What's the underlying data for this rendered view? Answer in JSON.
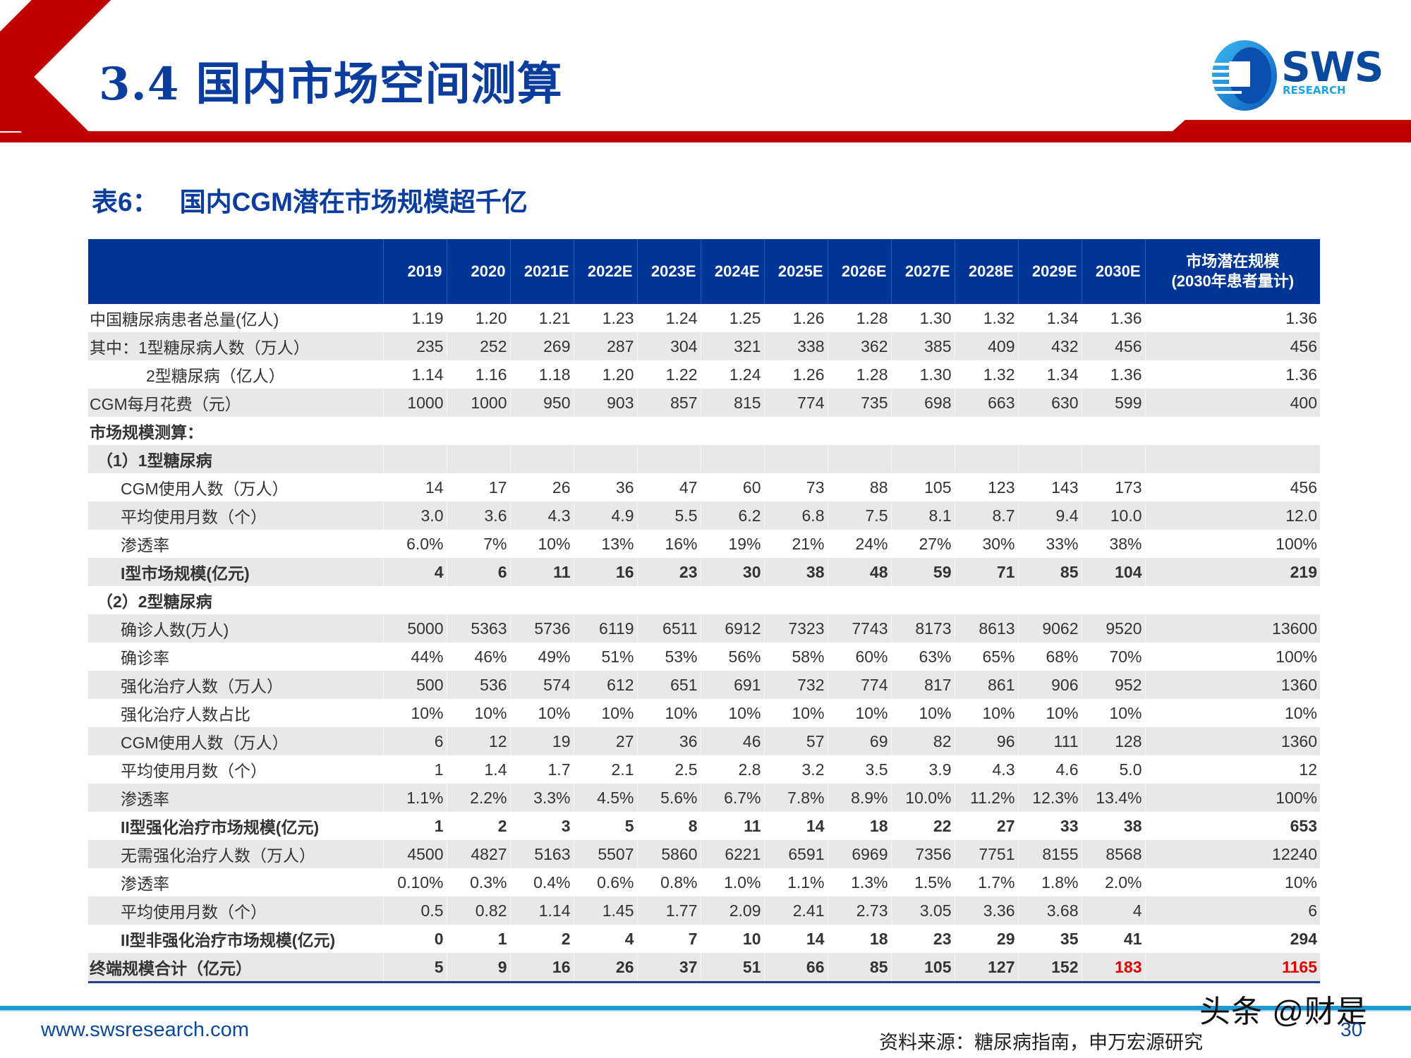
{
  "slide": {
    "title": "3.4 国内市场空间测算",
    "brand": {
      "name": "SWS",
      "sub": "RESEARCH"
    }
  },
  "table": {
    "caption_label": "表6：",
    "caption_text": "国内CGM潜在市场规模超千亿",
    "columns": [
      "",
      "2019",
      "2020",
      "2021E",
      "2022E",
      "2023E",
      "2024E",
      "2025E",
      "2026E",
      "2027E",
      "2028E",
      "2029E",
      "2030E"
    ],
    "last_column": {
      "line1": "市场潜在规模",
      "line2": "(2030年患者量计)"
    },
    "rows": [
      {
        "label": "中国糖尿病患者总量(亿人)",
        "values": [
          "1.19",
          "1.20",
          "1.21",
          "1.23",
          "1.24",
          "1.25",
          "1.26",
          "1.28",
          "1.30",
          "1.32",
          "1.34",
          "1.36"
        ],
        "potential": "1.36"
      },
      {
        "label": "其中：1型糖尿病人数（万人）",
        "values": [
          "235",
          "252",
          "269",
          "287",
          "304",
          "321",
          "338",
          "362",
          "385",
          "409",
          "432",
          "456"
        ],
        "potential": "456"
      },
      {
        "label": "2型糖尿病（亿人）",
        "values": [
          "1.14",
          "1.16",
          "1.18",
          "1.20",
          "1.22",
          "1.24",
          "1.26",
          "1.28",
          "1.30",
          "1.32",
          "1.34",
          "1.36"
        ],
        "potential": "1.36"
      },
      {
        "label": "CGM每月花费（元）",
        "values": [
          "1000",
          "1000",
          "950",
          "903",
          "857",
          "815",
          "774",
          "735",
          "698",
          "663",
          "630",
          "599"
        ],
        "potential": "400"
      },
      {
        "label": "市场规模测算：",
        "values": [
          "",
          "",
          "",
          "",
          "",
          "",
          "",
          "",
          "",
          "",
          "",
          ""
        ],
        "potential": ""
      },
      {
        "label": "（1）1型糖尿病",
        "values": [
          "",
          "",
          "",
          "",
          "",
          "",
          "",
          "",
          "",
          "",
          "",
          ""
        ],
        "potential": ""
      },
      {
        "label": "CGM使用人数（万人）",
        "values": [
          "14",
          "17",
          "26",
          "36",
          "47",
          "60",
          "73",
          "88",
          "105",
          "123",
          "143",
          "173"
        ],
        "potential": "456"
      },
      {
        "label": "平均使用月数（个）",
        "values": [
          "3.0",
          "3.6",
          "4.3",
          "4.9",
          "5.5",
          "6.2",
          "6.8",
          "7.5",
          "8.1",
          "8.7",
          "9.4",
          "10.0"
        ],
        "potential": "12.0"
      },
      {
        "label": "渗透率",
        "values": [
          "6.0%",
          "7%",
          "10%",
          "13%",
          "16%",
          "19%",
          "21%",
          "24%",
          "27%",
          "30%",
          "33%",
          "38%"
        ],
        "potential": "100%"
      },
      {
        "label": "I型市场规模(亿元)",
        "values": [
          "4",
          "6",
          "11",
          "16",
          "23",
          "30",
          "38",
          "48",
          "59",
          "71",
          "85",
          "104"
        ],
        "potential": "219"
      },
      {
        "label": "（2）2型糖尿病",
        "values": [
          "",
          "",
          "",
          "",
          "",
          "",
          "",
          "",
          "",
          "",
          "",
          ""
        ],
        "potential": ""
      },
      {
        "label": "确诊人数(万人)",
        "values": [
          "5000",
          "5363",
          "5736",
          "6119",
          "6511",
          "6912",
          "7323",
          "7743",
          "8173",
          "8613",
          "9062",
          "9520"
        ],
        "potential": "13600"
      },
      {
        "label": "确诊率",
        "values": [
          "44%",
          "46%",
          "49%",
          "51%",
          "53%",
          "56%",
          "58%",
          "60%",
          "63%",
          "65%",
          "68%",
          "70%"
        ],
        "potential": "100%"
      },
      {
        "label": "强化治疗人数（万人）",
        "values": [
          "500",
          "536",
          "574",
          "612",
          "651",
          "691",
          "732",
          "774",
          "817",
          "861",
          "906",
          "952"
        ],
        "potential": "1360"
      },
      {
        "label": "强化治疗人数占比",
        "values": [
          "10%",
          "10%",
          "10%",
          "10%",
          "10%",
          "10%",
          "10%",
          "10%",
          "10%",
          "10%",
          "10%",
          "10%"
        ],
        "potential": "10%"
      },
      {
        "label": "CGM使用人数（万人）",
        "values": [
          "6",
          "12",
          "19",
          "27",
          "36",
          "46",
          "57",
          "69",
          "82",
          "96",
          "111",
          "128"
        ],
        "potential": "1360"
      },
      {
        "label": "平均使用月数（个）",
        "values": [
          "1",
          "1.4",
          "1.7",
          "2.1",
          "2.5",
          "2.8",
          "3.2",
          "3.5",
          "3.9",
          "4.3",
          "4.6",
          "5.0"
        ],
        "potential": "12"
      },
      {
        "label": "渗透率",
        "values": [
          "1.1%",
          "2.2%",
          "3.3%",
          "4.5%",
          "5.6%",
          "6.7%",
          "7.8%",
          "8.9%",
          "10.0%",
          "11.2%",
          "12.3%",
          "13.4%"
        ],
        "potential": "100%"
      },
      {
        "label": "II型强化治疗市场规模(亿元)",
        "values": [
          "1",
          "2",
          "3",
          "5",
          "8",
          "11",
          "14",
          "18",
          "22",
          "27",
          "33",
          "38"
        ],
        "potential": "653"
      },
      {
        "label": "无需强化治疗人数（万人）",
        "values": [
          "4500",
          "4827",
          "5163",
          "5507",
          "5860",
          "6221",
          "6591",
          "6969",
          "7356",
          "7751",
          "8155",
          "8568"
        ],
        "potential": "12240"
      },
      {
        "label": "渗透率",
        "values": [
          "0.10%",
          "0.3%",
          "0.4%",
          "0.6%",
          "0.8%",
          "1.0%",
          "1.1%",
          "1.3%",
          "1.5%",
          "1.7%",
          "1.8%",
          "2.0%"
        ],
        "potential": "10%"
      },
      {
        "label": "平均使用月数（个）",
        "values": [
          "0.5",
          "0.82",
          "1.14",
          "1.45",
          "1.77",
          "2.09",
          "2.41",
          "2.73",
          "3.05",
          "3.36",
          "3.68",
          "4"
        ],
        "potential": "6"
      },
      {
        "label": "II型非强化治疗市场规模(亿元)",
        "values": [
          "0",
          "1",
          "2",
          "4",
          "7",
          "10",
          "14",
          "18",
          "23",
          "29",
          "35",
          "41"
        ],
        "potential": "294"
      },
      {
        "label": "终端规模合计（亿元）",
        "values": [
          "5",
          "9",
          "16",
          "26",
          "37",
          "51",
          "66",
          "85",
          "105",
          "127",
          "152",
          "183"
        ],
        "potential": "1165"
      }
    ]
  },
  "colors": {
    "title_blue": "#0a3d9e",
    "header_blue": "#003595",
    "brand_red": "#c00000",
    "highlight_red": "#e00000",
    "row_shade": "#e8e8e8",
    "footer_line": "#1c9ad6"
  },
  "footer": {
    "url": "www.swsresearch.com",
    "source": "资料来源：糖尿病指南，申万宏源研究",
    "page": "30",
    "watermark": "头条 @财是"
  }
}
